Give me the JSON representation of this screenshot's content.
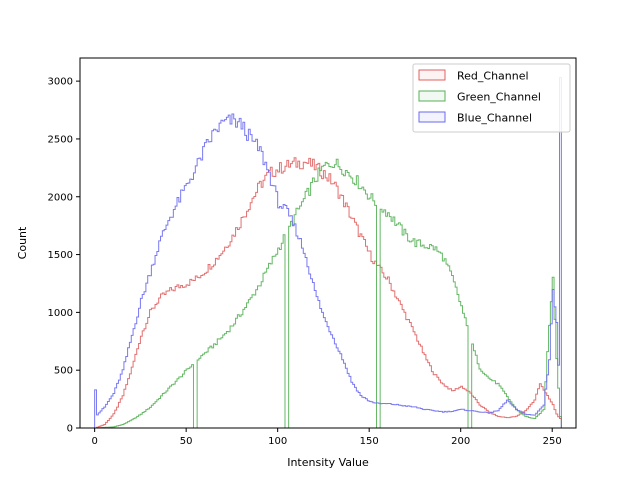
{
  "chart_data": {
    "type": "histogram-step",
    "title": "",
    "xlabel": "Intensity Value",
    "ylabel": "Count",
    "xlim": [
      -8,
      263
    ],
    "ylim": [
      0,
      3200
    ],
    "x_ticks": [
      0,
      50,
      100,
      150,
      200,
      250
    ],
    "y_ticks": [
      0,
      500,
      1000,
      1500,
      2000,
      2500,
      3000
    ],
    "grid": false,
    "legend": {
      "placement": "top-right"
    },
    "bins": {
      "start": 0,
      "end": 255,
      "step": 1
    },
    "series": [
      {
        "name": "Red_Channel",
        "color": "#e06060",
        "profile": [
          [
            0,
            0
          ],
          [
            5,
            30
          ],
          [
            10,
            120
          ],
          [
            15,
            280
          ],
          [
            20,
            520
          ],
          [
            25,
            800
          ],
          [
            30,
            1000
          ],
          [
            35,
            1120
          ],
          [
            40,
            1180
          ],
          [
            45,
            1220
          ],
          [
            50,
            1250
          ],
          [
            55,
            1290
          ],
          [
            60,
            1360
          ],
          [
            65,
            1440
          ],
          [
            70,
            1540
          ],
          [
            75,
            1660
          ],
          [
            80,
            1800
          ],
          [
            85,
            1960
          ],
          [
            90,
            2100
          ],
          [
            95,
            2200
          ],
          [
            100,
            2240
          ],
          [
            105,
            2270
          ],
          [
            110,
            2290
          ],
          [
            115,
            2300
          ],
          [
            120,
            2260
          ],
          [
            125,
            2200
          ],
          [
            130,
            2120
          ],
          [
            135,
            1980
          ],
          [
            140,
            1820
          ],
          [
            145,
            1660
          ],
          [
            150,
            1500
          ],
          [
            155,
            1380
          ],
          [
            160,
            1280
          ],
          [
            165,
            1120
          ],
          [
            170,
            960
          ],
          [
            175,
            800
          ],
          [
            180,
            620
          ],
          [
            185,
            470
          ],
          [
            190,
            380
          ],
          [
            195,
            320
          ],
          [
            200,
            360
          ],
          [
            205,
            300
          ],
          [
            210,
            200
          ],
          [
            215,
            140
          ],
          [
            220,
            100
          ],
          [
            225,
            90
          ],
          [
            230,
            100
          ],
          [
            235,
            150
          ],
          [
            240,
            240
          ],
          [
            243,
            390
          ],
          [
            246,
            300
          ],
          [
            250,
            200
          ],
          [
            252,
            120
          ],
          [
            254,
            80
          ],
          [
            255,
            0
          ]
        ],
        "spikes": [],
        "dips": []
      },
      {
        "name": "Green_Channel",
        "color": "#55b055",
        "profile": [
          [
            0,
            0
          ],
          [
            10,
            10
          ],
          [
            15,
            30
          ],
          [
            20,
            70
          ],
          [
            25,
            120
          ],
          [
            30,
            180
          ],
          [
            35,
            260
          ],
          [
            40,
            340
          ],
          [
            45,
            420
          ],
          [
            50,
            500
          ],
          [
            55,
            580
          ],
          [
            60,
            650
          ],
          [
            65,
            720
          ],
          [
            70,
            800
          ],
          [
            75,
            890
          ],
          [
            80,
            1000
          ],
          [
            85,
            1120
          ],
          [
            90,
            1250
          ],
          [
            95,
            1400
          ],
          [
            100,
            1550
          ],
          [
            105,
            1700
          ],
          [
            110,
            1860
          ],
          [
            115,
            2000
          ],
          [
            120,
            2150
          ],
          [
            125,
            2260
          ],
          [
            130,
            2300
          ],
          [
            135,
            2250
          ],
          [
            140,
            2180
          ],
          [
            145,
            2100
          ],
          [
            150,
            2000
          ],
          [
            155,
            1920
          ],
          [
            160,
            1860
          ],
          [
            165,
            1760
          ],
          [
            170,
            1660
          ],
          [
            175,
            1600
          ],
          [
            180,
            1580
          ],
          [
            185,
            1560
          ],
          [
            190,
            1480
          ],
          [
            195,
            1300
          ],
          [
            200,
            1050
          ],
          [
            205,
            760
          ],
          [
            210,
            520
          ],
          [
            215,
            430
          ],
          [
            220,
            380
          ],
          [
            225,
            270
          ],
          [
            230,
            160
          ],
          [
            235,
            100
          ],
          [
            240,
            80
          ],
          [
            245,
            160
          ],
          [
            248,
            900
          ],
          [
            250,
            1320
          ],
          [
            252,
            600
          ],
          [
            254,
            100
          ],
          [
            255,
            0
          ]
        ],
        "spikes": [],
        "dips": [
          [
            54,
            0
          ],
          [
            55,
            0
          ],
          [
            104,
            0
          ],
          [
            105,
            0
          ],
          [
            154,
            0
          ],
          [
            155,
            0
          ],
          [
            204,
            0
          ],
          [
            205,
            0
          ]
        ]
      },
      {
        "name": "Blue_Channel",
        "color": "#6a6af0",
        "profile": [
          [
            0,
            100
          ],
          [
            5,
            180
          ],
          [
            10,
            300
          ],
          [
            15,
            500
          ],
          [
            20,
            800
          ],
          [
            25,
            1100
          ],
          [
            30,
            1350
          ],
          [
            35,
            1600
          ],
          [
            40,
            1800
          ],
          [
            45,
            1950
          ],
          [
            50,
            2100
          ],
          [
            55,
            2250
          ],
          [
            60,
            2420
          ],
          [
            65,
            2560
          ],
          [
            70,
            2640
          ],
          [
            75,
            2660
          ],
          [
            80,
            2620
          ],
          [
            85,
            2500
          ],
          [
            90,
            2400
          ],
          [
            95,
            2200
          ],
          [
            100,
            1950
          ],
          [
            105,
            1860
          ],
          [
            110,
            1700
          ],
          [
            115,
            1480
          ],
          [
            120,
            1180
          ],
          [
            125,
            950
          ],
          [
            130,
            780
          ],
          [
            135,
            600
          ],
          [
            140,
            400
          ],
          [
            145,
            280
          ],
          [
            150,
            230
          ],
          [
            155,
            210
          ],
          [
            160,
            210
          ],
          [
            165,
            200
          ],
          [
            170,
            190
          ],
          [
            175,
            180
          ],
          [
            180,
            160
          ],
          [
            185,
            150
          ],
          [
            190,
            140
          ],
          [
            195,
            145
          ],
          [
            200,
            160
          ],
          [
            205,
            150
          ],
          [
            210,
            140
          ],
          [
            215,
            130
          ],
          [
            220,
            150
          ],
          [
            225,
            240
          ],
          [
            230,
            160
          ],
          [
            235,
            120
          ],
          [
            240,
            110
          ],
          [
            245,
            200
          ],
          [
            248,
            600
          ],
          [
            250,
            1200
          ],
          [
            252,
            900
          ],
          [
            254,
            200
          ],
          [
            255,
            0
          ]
        ],
        "spikes": [
          [
            0,
            330
          ],
          [
            254,
            3030
          ]
        ],
        "dips": []
      }
    ]
  }
}
